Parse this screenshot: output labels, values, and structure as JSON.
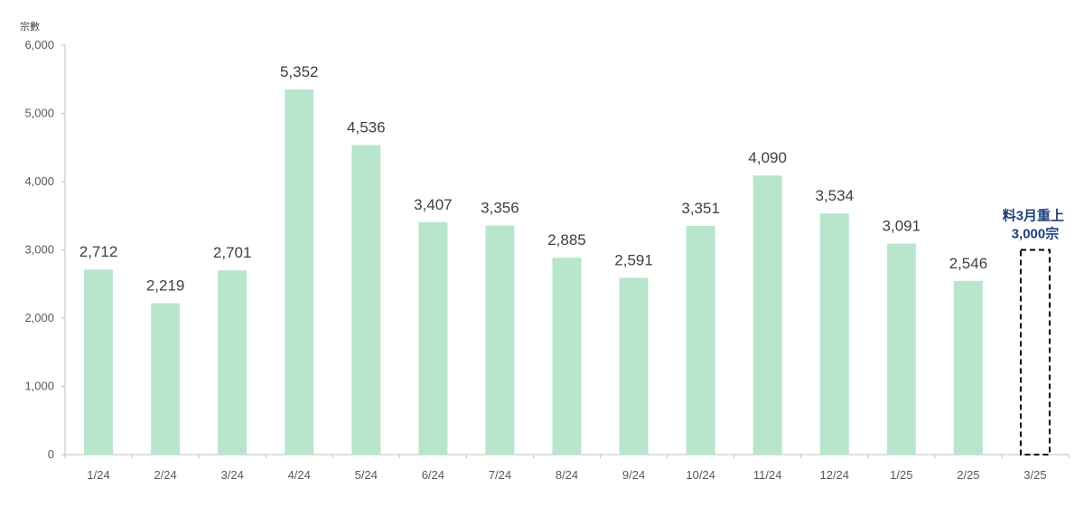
{
  "chart_data": {
    "type": "bar",
    "ylabel": "宗數",
    "ylim": [
      0,
      6000
    ],
    "yticks": [
      0,
      1000,
      2000,
      3000,
      4000,
      5000,
      6000
    ],
    "ytick_labels": [
      "0",
      "1,000",
      "2,000",
      "3,000",
      "4,000",
      "5,000",
      "6,000"
    ],
    "categories": [
      "1/24",
      "2/24",
      "3/24",
      "4/24",
      "5/24",
      "6/24",
      "7/24",
      "8/24",
      "9/24",
      "10/24",
      "11/24",
      "12/24",
      "1/25",
      "2/25",
      "3/25"
    ],
    "values": [
      2712,
      2219,
      2701,
      5352,
      4536,
      3407,
      3356,
      2885,
      2591,
      3351,
      4090,
      3534,
      3091,
      2546,
      null
    ],
    "value_labels": [
      "2,712",
      "2,219",
      "2,701",
      "5,352",
      "4,536",
      "3,407",
      "3,356",
      "2,885",
      "2,591",
      "3,351",
      "4,090",
      "3,534",
      "3,091",
      "2,546",
      ""
    ],
    "forecast": {
      "category": "3/25",
      "value": 3000,
      "annotation_lines": [
        "料3月重上",
        "3,000宗"
      ]
    },
    "grid": false,
    "legend": "none",
    "colors": {
      "bar": "#b8e6cc",
      "axis": "#bfbfbf",
      "label": "#404040",
      "forecast_border": "#000000",
      "annotation": "#1f3f7a"
    }
  }
}
